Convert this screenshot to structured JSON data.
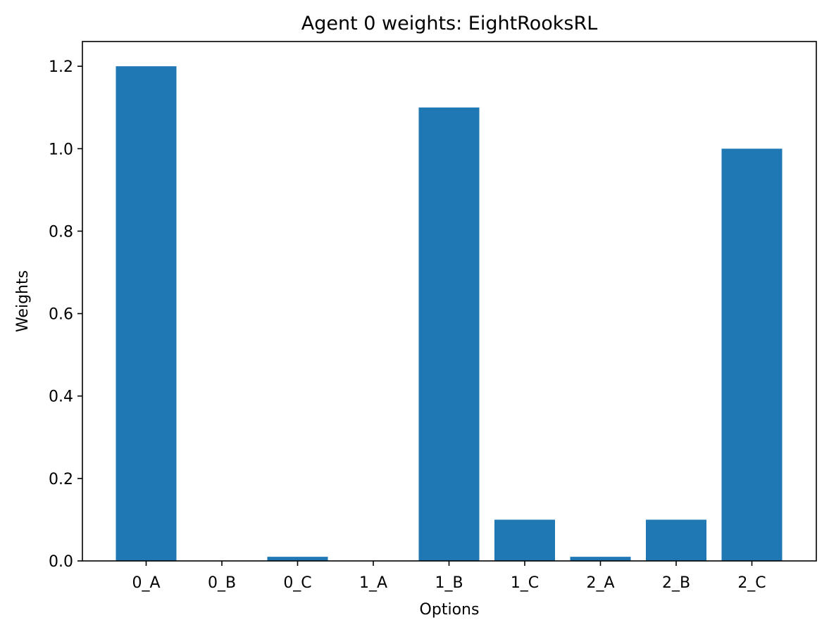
{
  "chart_data": {
    "type": "bar",
    "title": "Agent 0 weights: EightRooksRL",
    "xlabel": "Options",
    "ylabel": "Weights",
    "categories": [
      "0_A",
      "0_B",
      "0_C",
      "1_A",
      "1_B",
      "1_C",
      "2_A",
      "2_B",
      "2_C"
    ],
    "values": [
      1.2,
      0.0,
      0.01,
      0.0,
      1.1,
      0.1,
      0.01,
      0.1,
      1.0
    ],
    "ylim": [
      0,
      1.26
    ],
    "yticks": [
      0.0,
      0.2,
      0.4,
      0.6,
      0.8,
      1.0,
      1.2
    ],
    "ytick_labels": [
      "0.0",
      "0.2",
      "0.4",
      "0.6",
      "0.8",
      "1.0",
      "1.2"
    ],
    "grid": false,
    "legend": "none",
    "bar_color": "#1f77b4"
  }
}
